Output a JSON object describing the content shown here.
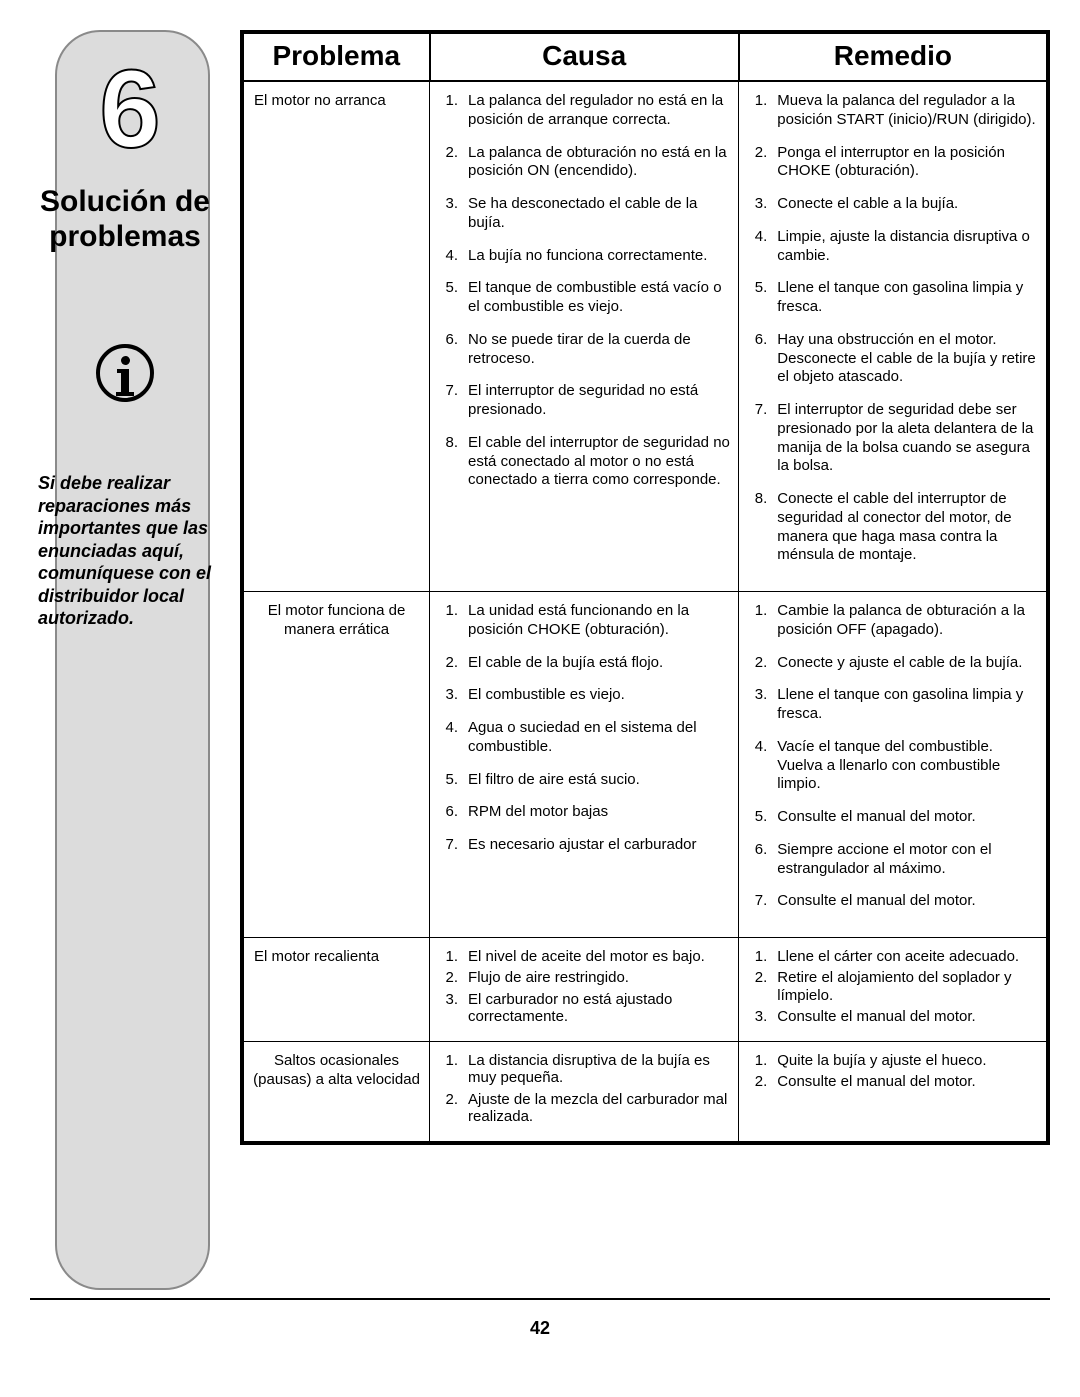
{
  "page_number": "42",
  "sidebar": {
    "chapter_number": "6",
    "title_line1": "Solución de",
    "title_line2": "problemas",
    "note": "Si debe realizar reparaciones más importantes que las enunciadas aquí, comuníquese con el distribuidor local autorizado."
  },
  "table": {
    "headers": {
      "problem": "Problema",
      "cause": "Causa",
      "remedy": "Remedio"
    },
    "rows": [
      {
        "problem": "El motor no arranca",
        "problem_align": "left",
        "list_class": "",
        "causes": [
          "La palanca del regulador no está en la posición de arranque correcta.",
          "La palanca de obturación no está en la posición ON (encendido).",
          "Se ha desconectado el cable de la bujía.",
          "La bujía no funciona correctamente.",
          "El tanque de combustible está vacío o el combustible es viejo.",
          "No se puede tirar de la cuerda de retroceso.",
          "El interruptor de seguridad no está presionado.",
          "El cable del interruptor de seguridad no está conectado al motor o no está conectado a tierra como corresponde."
        ],
        "remedies": [
          "Mueva la palanca del regulador a la posición START (inicio)/RUN (dirigido).",
          "Ponga el interruptor en la posición CHOKE (obturación).",
          "Conecte el cable a la bujía.",
          "Limpie, ajuste la distancia disruptiva o cambie.",
          "Llene el tanque con gasolina limpia y fresca.",
          "Hay una obstrucción en el motor. Desconecte el cable de la bujía y retire el objeto atascado.",
          "El interruptor de seguridad debe ser presionado por la aleta delantera de la manija de la bolsa cuando se asegura la bolsa.",
          "Conecte el cable del interruptor de seguridad al conector del motor, de manera que haga masa contra la ménsula de montaje."
        ]
      },
      {
        "problem": "El motor funciona de manera errática",
        "problem_align": "center",
        "list_class": "",
        "causes": [
          "La unidad está funcionando en la posición CHOKE (obturación).",
          "El cable de la bujía está flojo.",
          "El combustible es viejo.",
          "Agua o suciedad en el sistema del combustible.",
          "El filtro de aire está sucio.",
          "RPM del motor bajas",
          "Es necesario ajustar el carburador"
        ],
        "remedies": [
          "Cambie la palanca de obturación a la posición OFF (apagado).",
          "Conecte y ajuste el cable de la bujía.",
          "Llene el tanque con gasolina limpia y fresca.",
          "Vacíe el tanque del combustible. Vuelva a llenarlo con combustible limpio.",
          "Consulte el manual del motor.",
          "Siempre accione el motor con el estrangulador al máximo.",
          "Consulte el manual del motor."
        ]
      },
      {
        "problem": "El motor recalienta",
        "problem_align": "left",
        "list_class": "tight",
        "causes": [
          "El nivel de aceite del motor es bajo.",
          "Flujo de aire restringido.",
          "El carburador no está ajustado correctamente."
        ],
        "remedies": [
          "Llene el cárter con aceite adecuado.",
          "Retire el alojamiento del soplador y límpielo.",
          "Consulte el manual del motor."
        ]
      },
      {
        "problem": "Saltos ocasionales (pausas) a alta velocidad",
        "problem_align": "center",
        "list_class": "tight",
        "causes": [
          "La distancia disruptiva de la bujía es muy pequeña.",
          "Ajuste de la mezcla del carburador mal realizada."
        ],
        "remedies": [
          "Quite la bujía y ajuste el hueco.",
          "Consulte el manual del motor."
        ]
      }
    ]
  }
}
